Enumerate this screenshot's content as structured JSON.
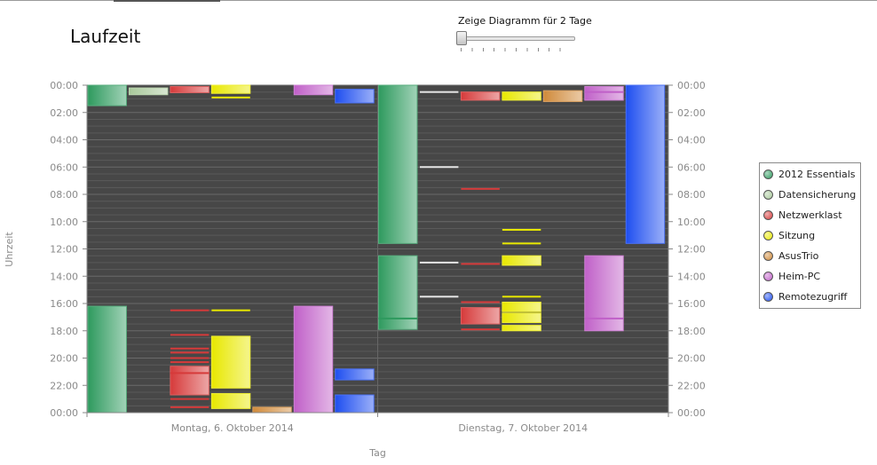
{
  "title": "Laufzeit",
  "slider": {
    "label": "Zeige Diagramm für 2 Tage",
    "value": 0
  },
  "chart_data": {
    "type": "bar",
    "title": "",
    "xlabel": "Tag",
    "ylabel": "Uhrzeit",
    "y_reversed": true,
    "ylim": [
      0,
      24
    ],
    "y_ticks": [
      "00:00",
      "02:00",
      "04:00",
      "06:00",
      "08:00",
      "10:00",
      "12:00",
      "14:00",
      "16:00",
      "18:00",
      "20:00",
      "22:00",
      "00:00"
    ],
    "categories": [
      "Montag, 6. Oktober 2014",
      "Dienstag, 7. Oktober 2014"
    ],
    "legend_position": "right",
    "grid": true,
    "series": [
      {
        "name": "2012 Essentials",
        "color": "#2e9a5e",
        "intervals": [
          [
            [
              0.0,
              1.5
            ],
            [
              16.2,
              24.0
            ]
          ],
          [
            [
              0.0,
              11.6
            ],
            [
              12.5,
              17.9
            ]
          ]
        ],
        "events": [
          [],
          [
            17.1
          ]
        ]
      },
      {
        "name": "Datensicherung",
        "color": "#a8c89a",
        "intervals": [
          [
            [
              0.2,
              0.7
            ]
          ],
          []
        ],
        "events": [
          [],
          [
            0.5,
            6.0,
            13.0,
            15.5
          ]
        ]
      },
      {
        "name": "Netzwerklast",
        "color": "#d63a3a",
        "intervals": [
          [
            [
              0.1,
              0.55
            ],
            [
              20.6,
              22.7
            ]
          ],
          [
            [
              0.5,
              1.1
            ],
            [
              16.3,
              17.5
            ]
          ]
        ],
        "events": [
          [
            16.5,
            18.3,
            19.3,
            19.6,
            20.0,
            20.3,
            21.1,
            23.0,
            23.6
          ],
          [
            7.6,
            13.1,
            15.9,
            17.9
          ]
        ]
      },
      {
        "name": "Sitzung",
        "color": "#e8e800",
        "intervals": [
          [
            [
              0.0,
              0.6
            ],
            [
              18.4,
              22.2
            ],
            [
              22.6,
              23.7
            ]
          ],
          [
            [
              0.5,
              1.1
            ],
            [
              12.5,
              13.2
            ],
            [
              15.9,
              16.6
            ],
            [
              16.7,
              17.4
            ],
            [
              17.6,
              18.0
            ]
          ]
        ],
        "events": [
          [
            0.9,
            16.5
          ],
          [
            10.6,
            11.6,
            15.5
          ]
        ]
      },
      {
        "name": "AsusTrio",
        "color": "#d08a3a",
        "intervals": [
          [
            [
              23.6,
              24.0
            ]
          ],
          [
            [
              0.4,
              1.2
            ]
          ]
        ],
        "events": [
          [],
          []
        ]
      },
      {
        "name": "Heim-PC",
        "color": "#c060c8",
        "intervals": [
          [
            [
              0.0,
              0.7
            ],
            [
              16.2,
              24.0
            ]
          ],
          [
            [
              0.1,
              1.1
            ],
            [
              12.5,
              18.0
            ]
          ]
        ],
        "events": [
          [],
          [
            0.5,
            17.1
          ]
        ]
      },
      {
        "name": "Remotezugriff",
        "color": "#1e4ef0",
        "intervals": [
          [
            [
              0.3,
              1.3
            ],
            [
              20.8,
              21.6
            ],
            [
              22.7,
              24.0
            ]
          ],
          [
            [
              0.0,
              11.6
            ]
          ]
        ],
        "events": [
          [],
          []
        ]
      }
    ]
  }
}
